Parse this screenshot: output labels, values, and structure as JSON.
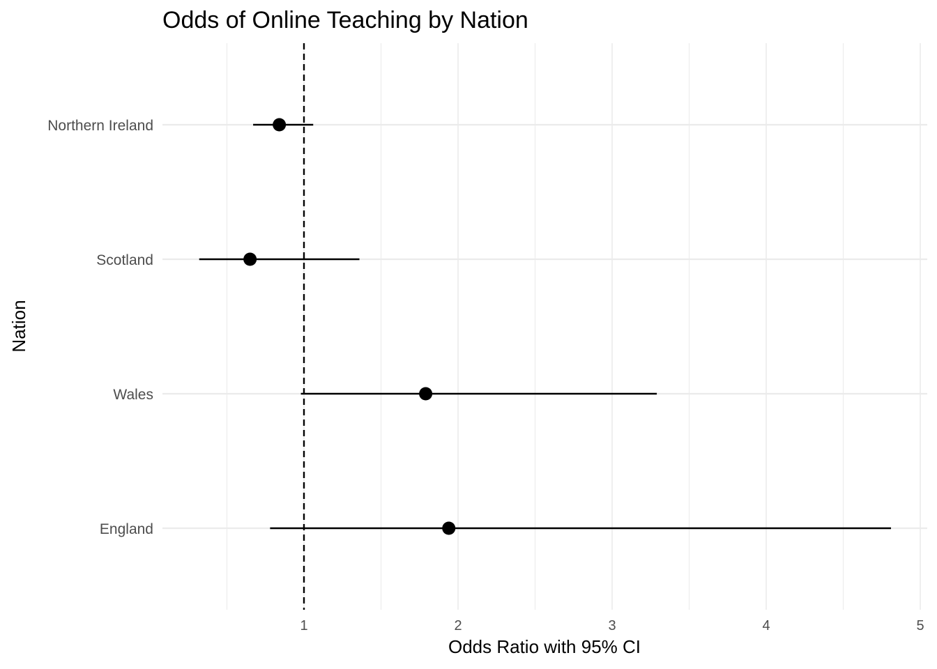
{
  "chart_data": {
    "type": "scatter",
    "subtype": "forest-plot",
    "title": "Odds of Online Teaching by Nation",
    "xlabel": "Odds Ratio with 95% CI",
    "ylabel": "Nation",
    "x_ticks": [
      1,
      2,
      3,
      4,
      5
    ],
    "xlim": [
      0.45,
      5.0
    ],
    "reference_line": {
      "x": 1,
      "style": "dashed",
      "color": "#000000"
    },
    "grid": true,
    "categories": [
      "England",
      "Wales",
      "Scotland",
      "Northern Ireland"
    ],
    "series": [
      {
        "points": [
          {
            "category": "England",
            "estimate": 1.94,
            "lower": 0.78,
            "upper": 4.81
          },
          {
            "category": "Wales",
            "estimate": 1.79,
            "lower": 0.98,
            "upper": 3.29
          },
          {
            "category": "Scotland",
            "estimate": 0.65,
            "lower": 0.32,
            "upper": 1.36
          },
          {
            "category": "Northern Ireland",
            "estimate": 0.84,
            "lower": 0.67,
            "upper": 1.06
          }
        ]
      }
    ],
    "colors": {
      "point": "#000000",
      "grid": "#ebebeb",
      "tick_text": "#4d4d4d"
    }
  }
}
